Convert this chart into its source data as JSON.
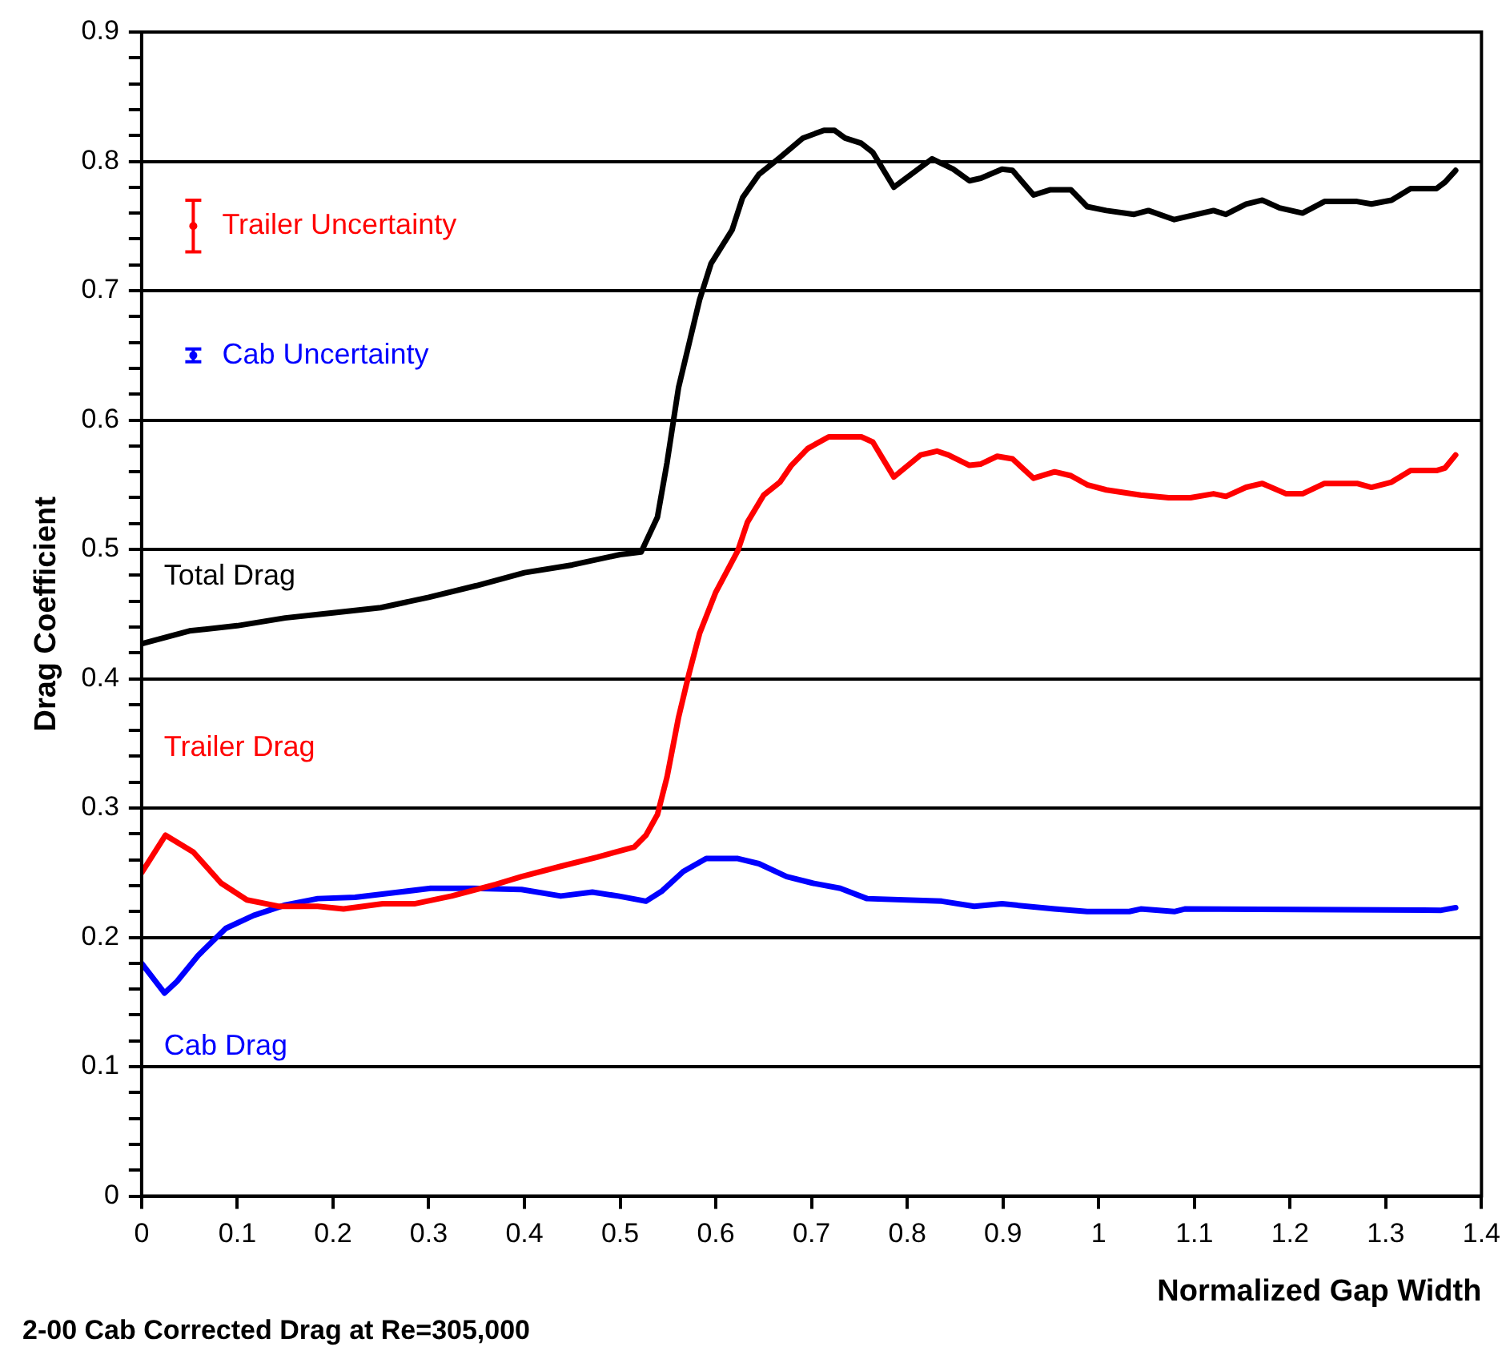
{
  "chart_data": {
    "type": "line",
    "xlabel": "Normalized Gap Width",
    "ylabel": "Drag Coefficient",
    "annotations": [
      "2-00 Cab Corrected Drag at Re=305,000"
    ],
    "xlim": [
      0,
      1.4
    ],
    "xticks": [
      0,
      0.1,
      0.2,
      0.3,
      0.4,
      0.5,
      0.6,
      0.7,
      0.8,
      0.9,
      1,
      1.1,
      1.2,
      1.3,
      1.4
    ],
    "ylim": [
      0,
      0.9
    ],
    "yticks": [
      0,
      {
        "value": 0.02,
        "label": null
      },
      {
        "value": 0.04,
        "label": null
      },
      {
        "value": 0.06,
        "label": null
      },
      {
        "value": 0.08,
        "label": null
      },
      0.1,
      {
        "value": 0.12,
        "label": null
      },
      {
        "value": 0.14,
        "label": null
      },
      {
        "value": 0.16,
        "label": null
      },
      {
        "value": 0.18,
        "label": null
      },
      0.2,
      {
        "value": 0.22,
        "label": null
      },
      {
        "value": 0.24,
        "label": null
      },
      {
        "value": 0.26,
        "label": null
      },
      {
        "value": 0.28,
        "label": null
      },
      0.3,
      {
        "value": 0.32,
        "label": null
      },
      {
        "value": 0.34,
        "label": null
      },
      {
        "value": 0.36,
        "label": null
      },
      {
        "value": 0.38,
        "label": null
      },
      0.4,
      {
        "value": 0.42,
        "label": null
      },
      {
        "value": 0.44,
        "label": null
      },
      {
        "value": 0.46,
        "label": null
      },
      {
        "value": 0.48,
        "label": null
      },
      0.5,
      {
        "value": 0.52,
        "label": null
      },
      {
        "value": 0.54,
        "label": null
      },
      {
        "value": 0.56,
        "label": null
      },
      {
        "value": 0.58,
        "label": null
      },
      0.6,
      {
        "value": 0.62,
        "label": null
      },
      {
        "value": 0.64,
        "label": null
      },
      {
        "value": 0.66,
        "label": null
      },
      {
        "value": 0.68,
        "label": null
      },
      0.7,
      {
        "value": 0.72,
        "label": null
      },
      {
        "value": 0.74,
        "label": null
      },
      {
        "value": 0.76,
        "label": null
      },
      {
        "value": 0.78,
        "label": null
      },
      0.8,
      {
        "value": 0.82,
        "label": null
      },
      {
        "value": 0.84,
        "label": null
      },
      {
        "value": 0.86,
        "label": null
      },
      {
        "value": 0.88,
        "label": null
      },
      0.9
    ],
    "grid": "y",
    "marker": "none",
    "series": [
      {
        "name": "Total Drag",
        "color": "#000000",
        "x": [
          0,
          0.05,
          0.1,
          0.15,
          0.2,
          0.25,
          0.3,
          0.35,
          0.4,
          0.45,
          0.5,
          0.522,
          0.539,
          0.549,
          0.561,
          0.572,
          0.583,
          0.595,
          0.617,
          0.628,
          0.645,
          0.667,
          0.691,
          0.713,
          0.724,
          0.735,
          0.752,
          0.764,
          0.786,
          0.826,
          0.848,
          0.865,
          0.877,
          0.899,
          0.91,
          0.932,
          0.949,
          0.971,
          0.988,
          1.008,
          1.037,
          1.052,
          1.079,
          1.12,
          1.133,
          1.154,
          1.171,
          1.189,
          1.213,
          1.236,
          1.27,
          1.285,
          1.306,
          1.326,
          1.353,
          1.362,
          1.373
        ],
        "values": [
          0.427,
          0.437,
          0.441,
          0.447,
          0.451,
          0.455,
          0.463,
          0.472,
          0.482,
          0.488,
          0.496,
          0.498,
          0.525,
          0.567,
          0.625,
          0.659,
          0.693,
          0.721,
          0.747,
          0.772,
          0.79,
          0.803,
          0.818,
          0.824,
          0.824,
          0.818,
          0.814,
          0.807,
          0.78,
          0.802,
          0.794,
          0.785,
          0.787,
          0.794,
          0.793,
          0.774,
          0.778,
          0.778,
          0.765,
          0.762,
          0.759,
          0.762,
          0.755,
          0.762,
          0.759,
          0.767,
          0.77,
          0.764,
          0.76,
          0.769,
          0.769,
          0.767,
          0.77,
          0.779,
          0.779,
          0.784,
          0.793
        ]
      },
      {
        "name": "Trailer Drag",
        "color": "#ff0000",
        "x": [
          0,
          0.025,
          0.054,
          0.083,
          0.11,
          0.144,
          0.184,
          0.211,
          0.252,
          0.285,
          0.324,
          0.37,
          0.397,
          0.438,
          0.476,
          0.515,
          0.527,
          0.539,
          0.549,
          0.561,
          0.572,
          0.583,
          0.6,
          0.623,
          0.633,
          0.65,
          0.667,
          0.679,
          0.696,
          0.718,
          0.752,
          0.764,
          0.786,
          0.814,
          0.831,
          0.843,
          0.865,
          0.877,
          0.894,
          0.91,
          0.932,
          0.954,
          0.971,
          0.988,
          1.008,
          1.044,
          1.073,
          1.096,
          1.12,
          1.133,
          1.154,
          1.171,
          1.196,
          1.213,
          1.236,
          1.27,
          1.285,
          1.306,
          1.326,
          1.353,
          1.362,
          1.373
        ],
        "values": [
          0.25,
          0.279,
          0.266,
          0.242,
          0.229,
          0.224,
          0.224,
          0.222,
          0.226,
          0.226,
          0.232,
          0.241,
          0.247,
          0.255,
          0.262,
          0.27,
          0.279,
          0.295,
          0.324,
          0.37,
          0.404,
          0.435,
          0.467,
          0.499,
          0.521,
          0.542,
          0.552,
          0.565,
          0.578,
          0.587,
          0.587,
          0.583,
          0.556,
          0.573,
          0.576,
          0.573,
          0.565,
          0.566,
          0.572,
          0.57,
          0.555,
          0.56,
          0.557,
          0.55,
          0.546,
          0.542,
          0.54,
          0.54,
          0.543,
          0.541,
          0.548,
          0.551,
          0.543,
          0.543,
          0.551,
          0.551,
          0.548,
          0.552,
          0.561,
          0.561,
          0.563,
          0.573
        ]
      },
      {
        "name": "Cab Drag",
        "color": "#0000ff",
        "x": [
          0,
          0.024,
          0.037,
          0.059,
          0.088,
          0.117,
          0.15,
          0.184,
          0.223,
          0.269,
          0.302,
          0.346,
          0.397,
          0.438,
          0.471,
          0.498,
          0.527,
          0.544,
          0.566,
          0.59,
          0.623,
          0.645,
          0.674,
          0.701,
          0.73,
          0.758,
          0.836,
          0.87,
          0.899,
          0.954,
          0.988,
          1.032,
          1.044,
          1.079,
          1.09,
          1.358,
          1.373
        ],
        "values": [
          0.18,
          0.157,
          0.166,
          0.186,
          0.207,
          0.217,
          0.225,
          0.23,
          0.231,
          0.235,
          0.238,
          0.238,
          0.237,
          0.232,
          0.235,
          0.232,
          0.228,
          0.236,
          0.251,
          0.261,
          0.261,
          0.257,
          0.247,
          0.242,
          0.238,
          0.23,
          0.228,
          0.224,
          0.226,
          0.222,
          0.22,
          0.22,
          0.222,
          0.22,
          0.222,
          0.221,
          0.223
        ]
      },
      {
        "name": "Trailer Uncertainty",
        "type": "scatter",
        "marker": "circle",
        "color": "#ff0000",
        "x": [
          0.054
        ],
        "values": [
          0.75
        ],
        "errors": [
          0.02
        ]
      },
      {
        "name": "Cab Uncertainty",
        "type": "scatter",
        "marker": "circle",
        "color": "#0000ff",
        "x": [
          0.054
        ],
        "values": [
          0.65
        ],
        "errors": [
          0.005
        ]
      }
    ]
  }
}
